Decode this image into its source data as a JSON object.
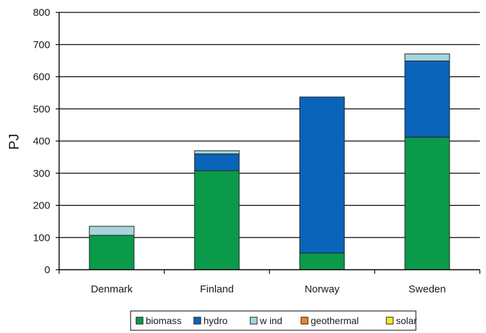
{
  "chart_data": {
    "type": "bar",
    "stacked": true,
    "categories": [
      "Denmark",
      "Finland",
      "Norway",
      "Sweden"
    ],
    "series": [
      {
        "name": "biomass",
        "color": "#0a9a4a",
        "values": [
          107,
          308,
          52,
          412
        ]
      },
      {
        "name": "hydro",
        "color": "#0a64b9",
        "values": [
          0,
          52,
          485,
          237
        ]
      },
      {
        "name": "w ind",
        "color": "#a6d6dc",
        "values": [
          28,
          10,
          0,
          22
        ]
      },
      {
        "name": "geothermal",
        "color": "#f58220",
        "values": [
          0,
          0,
          0,
          0
        ]
      },
      {
        "name": "solar",
        "color": "#f3ea23",
        "values": [
          0,
          0,
          0,
          0
        ]
      }
    ],
    "title": "",
    "xlabel": "",
    "ylabel": "PJ",
    "ylim": [
      0,
      800
    ],
    "yticks": [
      0,
      100,
      200,
      300,
      400,
      500,
      600,
      700,
      800
    ],
    "grid": true,
    "legend_position": "bottom"
  }
}
